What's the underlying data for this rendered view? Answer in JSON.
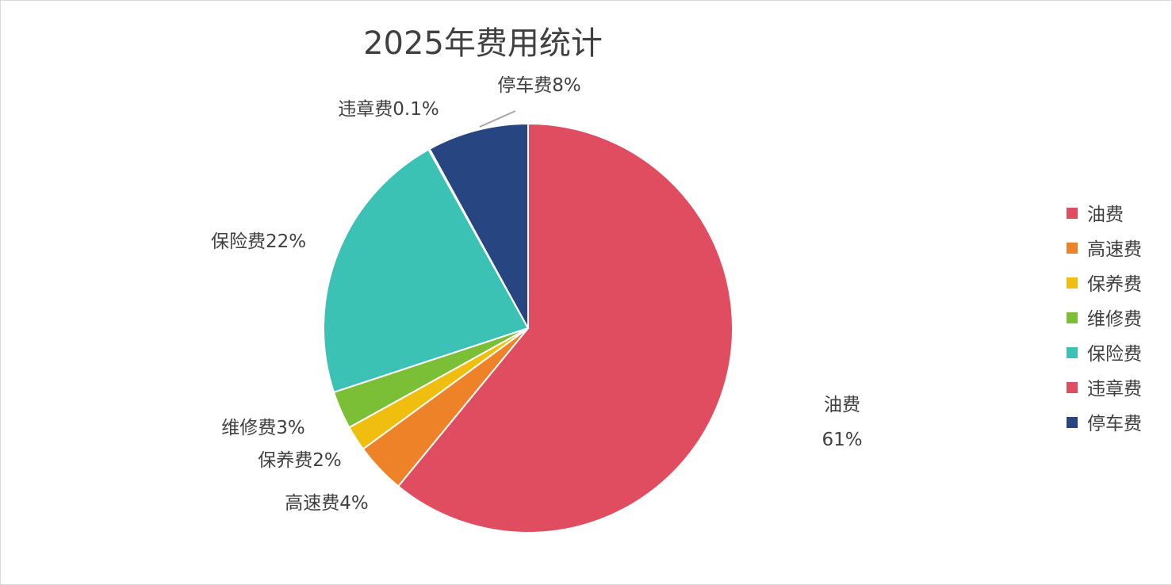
{
  "chart_data": {
    "type": "pie",
    "title": "2025年费用统计",
    "categories": [
      "油费",
      "高速费",
      "保养费",
      "维修费",
      "保险费",
      "违章费",
      "停车费"
    ],
    "values": [
      61,
      4,
      2,
      3,
      22,
      0.1,
      8
    ],
    "percent_labels": [
      "61%",
      "4%",
      "2%",
      "3%",
      "22%",
      "0.1%",
      "8%"
    ],
    "colors": [
      "#E04C60",
      "#EE8228",
      "#EFBE0F",
      "#7BBF37",
      "#3CC2B5",
      "#E04C60",
      "#264581"
    ],
    "label_colors": [
      "#C00000",
      "#404040",
      "#404040",
      "#404040",
      "#5B9E2F",
      "#404040",
      "#404040"
    ],
    "start_angle_deg": 0,
    "direction": "clockwise",
    "legend_position": "right"
  }
}
